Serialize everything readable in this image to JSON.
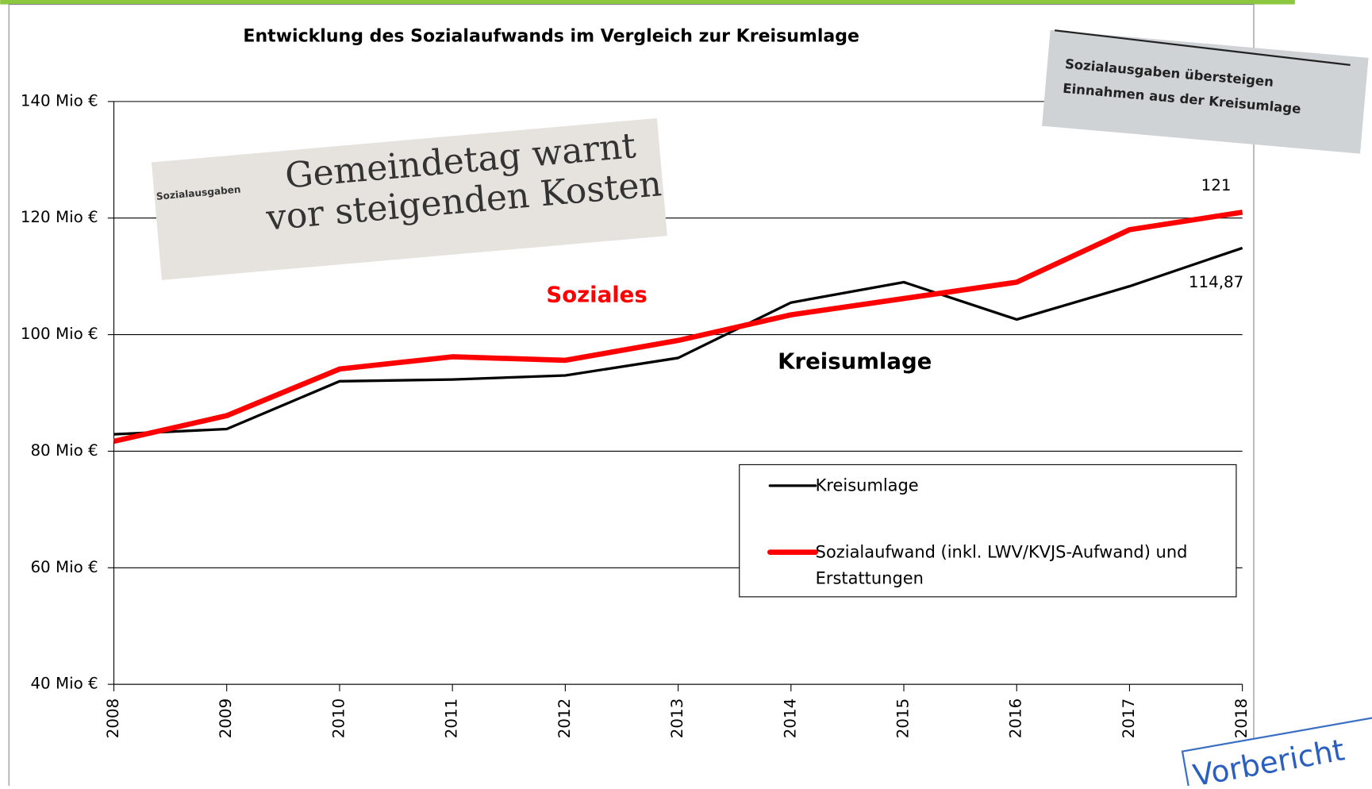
{
  "chart_data": {
    "type": "line",
    "title": "Entwicklung des Sozialaufwands im Vergleich zur Kreisumlage",
    "categories": [
      "2008",
      "2009",
      "2010",
      "2011",
      "2012",
      "2013",
      "2014",
      "2015",
      "2016",
      "2017",
      "2018"
    ],
    "series": [
      {
        "name": "Kreisumlage",
        "color": "#000000",
        "values": [
          82.9,
          83.8,
          92.0,
          92.3,
          93.0,
          96.0,
          105.5,
          109.0,
          102.6,
          108.3,
          114.87
        ],
        "value_labels": [
          null,
          null,
          null,
          null,
          null,
          null,
          null,
          null,
          null,
          null,
          "114,87"
        ]
      },
      {
        "name": "Sozialaufwand (inkl. LWV/KVJS-Aufwand) und Erstattungen",
        "color": "#ff0000",
        "values": [
          81.7,
          86.1,
          94.1,
          96.2,
          95.6,
          99.0,
          103.4,
          106.2,
          109.0,
          118.0,
          121
        ],
        "value_labels": [
          null,
          null,
          null,
          null,
          null,
          null,
          null,
          null,
          null,
          null,
          "121"
        ]
      }
    ],
    "ylim": [
      40,
      140
    ],
    "yticks": [
      {
        "value": 40,
        "label": "40 Mio €"
      },
      {
        "value": 60,
        "label": "60 Mio €"
      },
      {
        "value": 80,
        "label": "80 Mio €"
      },
      {
        "value": 100,
        "label": "100 Mio €"
      },
      {
        "value": 120,
        "label": "120 Mio €"
      },
      {
        "value": 140,
        "label": "140 Mio €"
      }
    ],
    "grid": true,
    "annotations": [
      "Soziales",
      "Kreisumlage"
    ],
    "clippings": {
      "left": {
        "kicker": "Sozialausgaben",
        "lines": [
          "Gemeindetag warnt",
          "vor steigenden Kosten"
        ]
      },
      "right": {
        "lines": [
          "Sozialausgaben übersteigen",
          "Einnahmen aus der Kreisumlage"
        ]
      },
      "stamp": "Vorbericht"
    }
  }
}
